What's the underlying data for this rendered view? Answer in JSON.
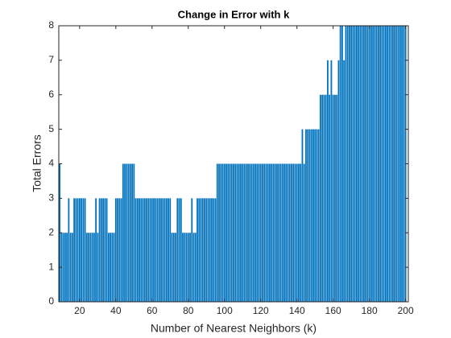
{
  "chart_data": {
    "type": "bar",
    "title": "Change in Error with k",
    "x_label": "Number of Nearest Neighbors (k)",
    "y_label": "Total Errors",
    "x": [
      9,
      10,
      11,
      12,
      13,
      14,
      15,
      16,
      17,
      18,
      19,
      20,
      21,
      22,
      23,
      24,
      25,
      26,
      27,
      28,
      29,
      30,
      31,
      32,
      33,
      34,
      35,
      36,
      37,
      38,
      39,
      40,
      41,
      42,
      43,
      44,
      45,
      46,
      47,
      48,
      49,
      50,
      51,
      52,
      53,
      54,
      55,
      56,
      57,
      58,
      59,
      60,
      61,
      62,
      63,
      64,
      65,
      66,
      67,
      68,
      69,
      70,
      71,
      72,
      73,
      74,
      75,
      76,
      77,
      78,
      79,
      80,
      81,
      82,
      83,
      84,
      85,
      86,
      87,
      88,
      89,
      90,
      91,
      92,
      93,
      94,
      95,
      96,
      97,
      98,
      99,
      100,
      101,
      102,
      103,
      104,
      105,
      106,
      107,
      108,
      109,
      110,
      111,
      112,
      113,
      114,
      115,
      116,
      117,
      118,
      119,
      120,
      121,
      122,
      123,
      124,
      125,
      126,
      127,
      128,
      129,
      130,
      131,
      132,
      133,
      134,
      135,
      136,
      137,
      138,
      139,
      140,
      141,
      142,
      143,
      144,
      145,
      146,
      147,
      148,
      149,
      150,
      151,
      152,
      153,
      154,
      155,
      156,
      157,
      158,
      159,
      160,
      161,
      162,
      163,
      164,
      165,
      166,
      167,
      168,
      169,
      170,
      171,
      172,
      173,
      174,
      175,
      176,
      177,
      178,
      179,
      180,
      181,
      182,
      183,
      184,
      185,
      186,
      187,
      188,
      189,
      190,
      191,
      192,
      193,
      194,
      195,
      196,
      197,
      198,
      199,
      200
    ],
    "values": [
      4,
      2,
      2,
      2,
      2,
      3,
      2,
      2,
      3,
      3,
      3,
      3,
      3,
      3,
      3,
      2,
      2,
      2,
      2,
      2,
      3,
      2,
      3,
      3,
      3,
      3,
      3,
      2,
      2,
      2,
      2,
      3,
      3,
      3,
      3,
      4,
      4,
      4,
      4,
      4,
      4,
      4,
      3,
      3,
      3,
      3,
      3,
      3,
      3,
      3,
      3,
      3,
      3,
      3,
      3,
      3,
      3,
      3,
      3,
      3,
      3,
      3,
      2,
      2,
      2,
      3,
      3,
      3,
      2,
      2,
      2,
      2,
      2,
      3,
      2,
      2,
      3,
      3,
      3,
      3,
      3,
      3,
      3,
      3,
      3,
      3,
      3,
      4,
      4,
      4,
      4,
      4,
      4,
      4,
      4,
      4,
      4,
      4,
      4,
      4,
      4,
      4,
      4,
      4,
      4,
      4,
      4,
      4,
      4,
      4,
      4,
      4,
      4,
      4,
      4,
      4,
      4,
      4,
      4,
      4,
      4,
      4,
      4,
      4,
      4,
      4,
      4,
      4,
      4,
      4,
      4,
      4,
      4,
      4,
      5,
      4,
      5,
      5,
      5,
      5,
      5,
      5,
      5,
      5,
      6,
      6,
      6,
      6,
      7,
      6,
      7,
      6,
      6,
      6,
      7,
      8,
      8,
      7,
      8,
      8,
      8,
      8,
      8,
      8,
      8,
      8,
      8,
      8,
      8,
      8,
      8,
      8,
      8,
      8,
      8,
      8,
      8,
      8,
      8,
      8,
      8,
      8,
      8,
      8,
      8,
      8,
      8,
      8,
      8,
      8,
      8,
      8
    ],
    "color": "#0072bd",
    "xlim": [
      8.5,
      201.5
    ],
    "xticks": [
      20,
      40,
      60,
      80,
      100,
      120,
      140,
      160,
      180,
      200
    ],
    "ylim": [
      0,
      8
    ],
    "yticks": [
      0,
      1,
      2,
      3,
      4,
      5,
      6,
      7,
      8
    ]
  }
}
